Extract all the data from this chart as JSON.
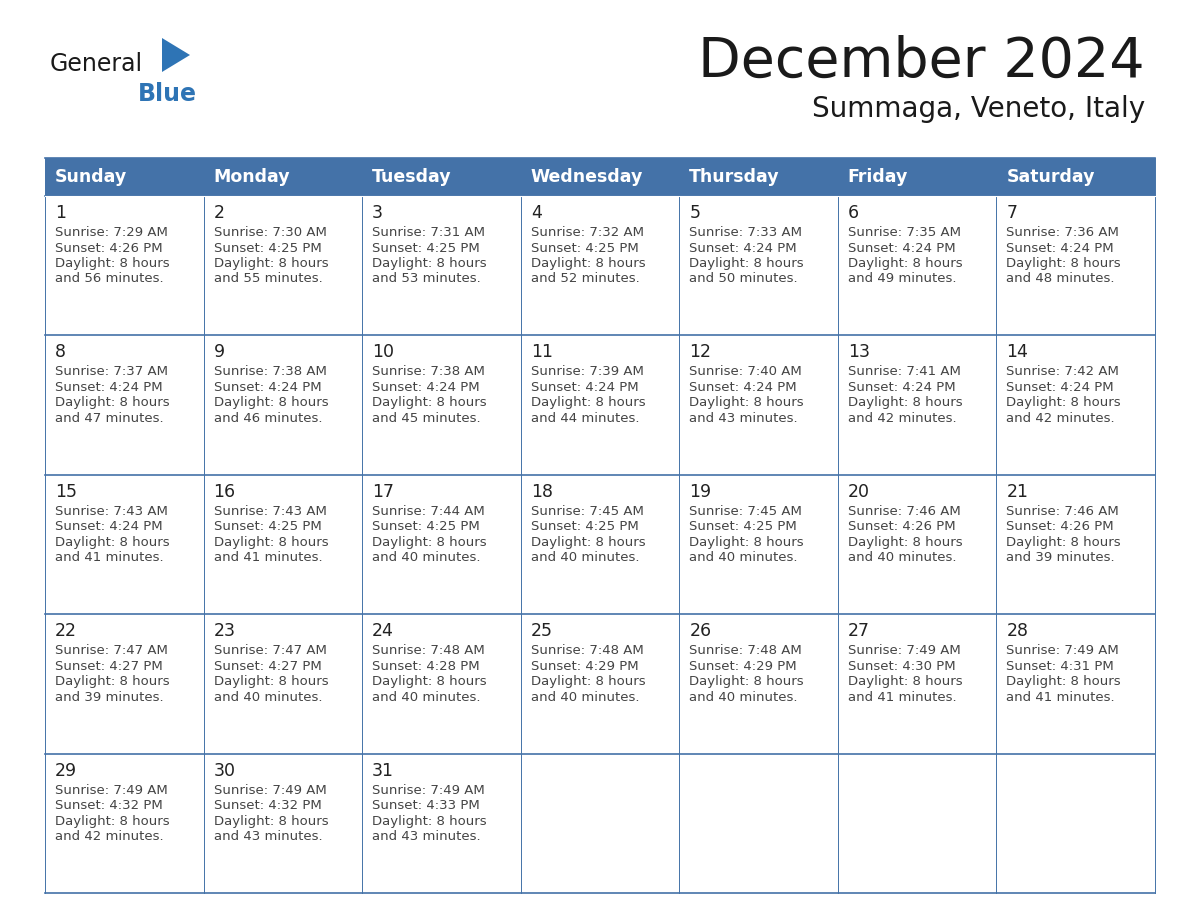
{
  "title": "December 2024",
  "subtitle": "Summaga, Veneto, Italy",
  "header_bg": "#4472a8",
  "header_text_color": "#ffffff",
  "cell_border_color": "#4472a8",
  "day_number_color": "#222222",
  "cell_text_color": "#444444",
  "logo_general_color": "#1a1a1a",
  "logo_blue_color": "#2e74b5",
  "days_of_week": [
    "Sunday",
    "Monday",
    "Tuesday",
    "Wednesday",
    "Thursday",
    "Friday",
    "Saturday"
  ],
  "weeks": [
    [
      {
        "day": "1",
        "sunrise": "7:29 AM",
        "sunset": "4:26 PM",
        "daylight_line1": "8 hours",
        "daylight_line2": "and 56 minutes."
      },
      {
        "day": "2",
        "sunrise": "7:30 AM",
        "sunset": "4:25 PM",
        "daylight_line1": "8 hours",
        "daylight_line2": "and 55 minutes."
      },
      {
        "day": "3",
        "sunrise": "7:31 AM",
        "sunset": "4:25 PM",
        "daylight_line1": "8 hours",
        "daylight_line2": "and 53 minutes."
      },
      {
        "day": "4",
        "sunrise": "7:32 AM",
        "sunset": "4:25 PM",
        "daylight_line1": "8 hours",
        "daylight_line2": "and 52 minutes."
      },
      {
        "day": "5",
        "sunrise": "7:33 AM",
        "sunset": "4:24 PM",
        "daylight_line1": "8 hours",
        "daylight_line2": "and 50 minutes."
      },
      {
        "day": "6",
        "sunrise": "7:35 AM",
        "sunset": "4:24 PM",
        "daylight_line1": "8 hours",
        "daylight_line2": "and 49 minutes."
      },
      {
        "day": "7",
        "sunrise": "7:36 AM",
        "sunset": "4:24 PM",
        "daylight_line1": "8 hours",
        "daylight_line2": "and 48 minutes."
      }
    ],
    [
      {
        "day": "8",
        "sunrise": "7:37 AM",
        "sunset": "4:24 PM",
        "daylight_line1": "8 hours",
        "daylight_line2": "and 47 minutes."
      },
      {
        "day": "9",
        "sunrise": "7:38 AM",
        "sunset": "4:24 PM",
        "daylight_line1": "8 hours",
        "daylight_line2": "and 46 minutes."
      },
      {
        "day": "10",
        "sunrise": "7:38 AM",
        "sunset": "4:24 PM",
        "daylight_line1": "8 hours",
        "daylight_line2": "and 45 minutes."
      },
      {
        "day": "11",
        "sunrise": "7:39 AM",
        "sunset": "4:24 PM",
        "daylight_line1": "8 hours",
        "daylight_line2": "and 44 minutes."
      },
      {
        "day": "12",
        "sunrise": "7:40 AM",
        "sunset": "4:24 PM",
        "daylight_line1": "8 hours",
        "daylight_line2": "and 43 minutes."
      },
      {
        "day": "13",
        "sunrise": "7:41 AM",
        "sunset": "4:24 PM",
        "daylight_line1": "8 hours",
        "daylight_line2": "and 42 minutes."
      },
      {
        "day": "14",
        "sunrise": "7:42 AM",
        "sunset": "4:24 PM",
        "daylight_line1": "8 hours",
        "daylight_line2": "and 42 minutes."
      }
    ],
    [
      {
        "day": "15",
        "sunrise": "7:43 AM",
        "sunset": "4:24 PM",
        "daylight_line1": "8 hours",
        "daylight_line2": "and 41 minutes."
      },
      {
        "day": "16",
        "sunrise": "7:43 AM",
        "sunset": "4:25 PM",
        "daylight_line1": "8 hours",
        "daylight_line2": "and 41 minutes."
      },
      {
        "day": "17",
        "sunrise": "7:44 AM",
        "sunset": "4:25 PM",
        "daylight_line1": "8 hours",
        "daylight_line2": "and 40 minutes."
      },
      {
        "day": "18",
        "sunrise": "7:45 AM",
        "sunset": "4:25 PM",
        "daylight_line1": "8 hours",
        "daylight_line2": "and 40 minutes."
      },
      {
        "day": "19",
        "sunrise": "7:45 AM",
        "sunset": "4:25 PM",
        "daylight_line1": "8 hours",
        "daylight_line2": "and 40 minutes."
      },
      {
        "day": "20",
        "sunrise": "7:46 AM",
        "sunset": "4:26 PM",
        "daylight_line1": "8 hours",
        "daylight_line2": "and 40 minutes."
      },
      {
        "day": "21",
        "sunrise": "7:46 AM",
        "sunset": "4:26 PM",
        "daylight_line1": "8 hours",
        "daylight_line2": "and 39 minutes."
      }
    ],
    [
      {
        "day": "22",
        "sunrise": "7:47 AM",
        "sunset": "4:27 PM",
        "daylight_line1": "8 hours",
        "daylight_line2": "and 39 minutes."
      },
      {
        "day": "23",
        "sunrise": "7:47 AM",
        "sunset": "4:27 PM",
        "daylight_line1": "8 hours",
        "daylight_line2": "and 40 minutes."
      },
      {
        "day": "24",
        "sunrise": "7:48 AM",
        "sunset": "4:28 PM",
        "daylight_line1": "8 hours",
        "daylight_line2": "and 40 minutes."
      },
      {
        "day": "25",
        "sunrise": "7:48 AM",
        "sunset": "4:29 PM",
        "daylight_line1": "8 hours",
        "daylight_line2": "and 40 minutes."
      },
      {
        "day": "26",
        "sunrise": "7:48 AM",
        "sunset": "4:29 PM",
        "daylight_line1": "8 hours",
        "daylight_line2": "and 40 minutes."
      },
      {
        "day": "27",
        "sunrise": "7:49 AM",
        "sunset": "4:30 PM",
        "daylight_line1": "8 hours",
        "daylight_line2": "and 41 minutes."
      },
      {
        "day": "28",
        "sunrise": "7:49 AM",
        "sunset": "4:31 PM",
        "daylight_line1": "8 hours",
        "daylight_line2": "and 41 minutes."
      }
    ],
    [
      {
        "day": "29",
        "sunrise": "7:49 AM",
        "sunset": "4:32 PM",
        "daylight_line1": "8 hours",
        "daylight_line2": "and 42 minutes."
      },
      {
        "day": "30",
        "sunrise": "7:49 AM",
        "sunset": "4:32 PM",
        "daylight_line1": "8 hours",
        "daylight_line2": "and 43 minutes."
      },
      {
        "day": "31",
        "sunrise": "7:49 AM",
        "sunset": "4:33 PM",
        "daylight_line1": "8 hours",
        "daylight_line2": "and 43 minutes."
      },
      null,
      null,
      null,
      null
    ]
  ]
}
